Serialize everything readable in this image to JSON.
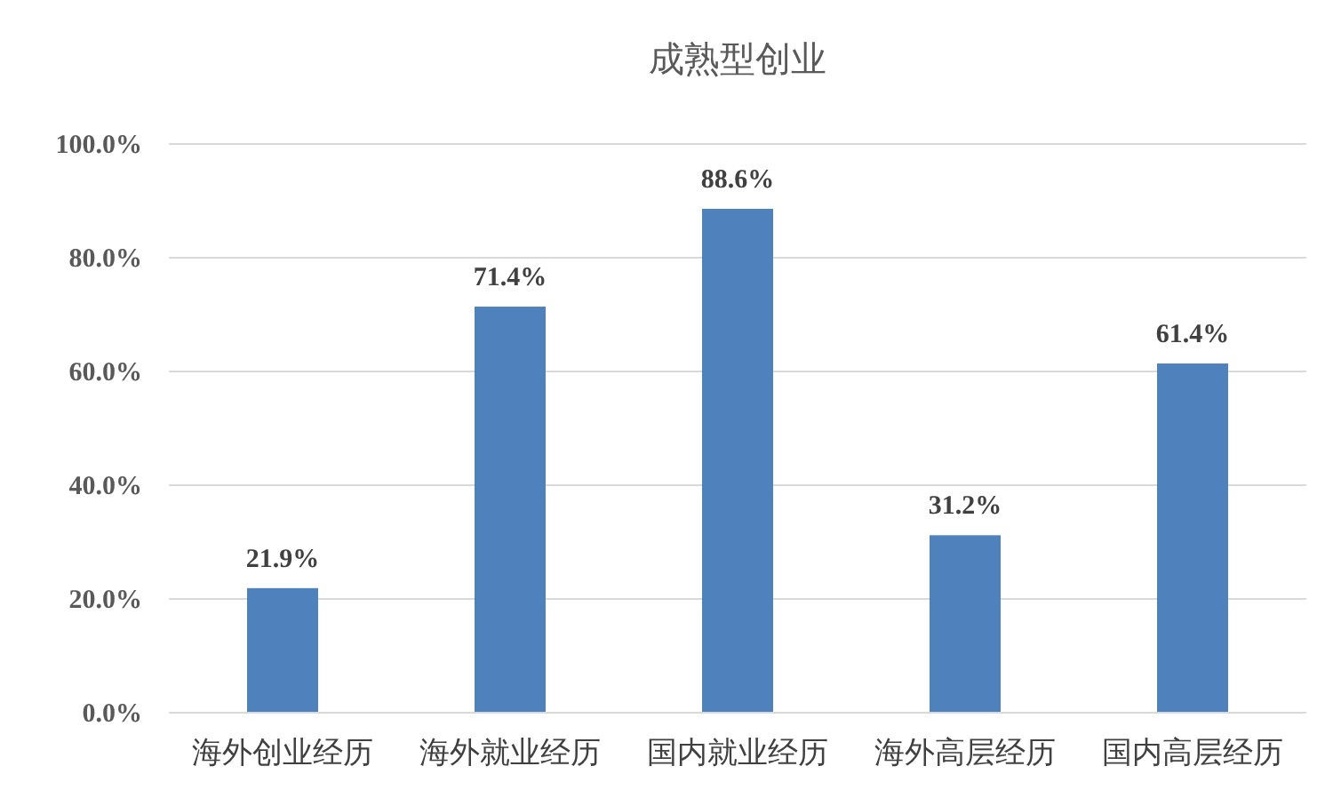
{
  "chart_data": {
    "type": "bar",
    "title": "成熟型创业",
    "categories": [
      "海外创业经历",
      "海外就业经历",
      "国内就业经历",
      "海外高层经历",
      "国内高层经历"
    ],
    "values": [
      21.9,
      71.4,
      88.6,
      31.2,
      61.4
    ],
    "value_labels": [
      "21.9%",
      "71.4%",
      "88.6%",
      "31.2%",
      "61.4%"
    ],
    "color": "#4f81bd",
    "ylim": [
      0,
      100
    ],
    "yticks": [
      {
        "value": 0,
        "label": "0.0%"
      },
      {
        "value": 20,
        "label": "20.0%"
      },
      {
        "value": 40,
        "label": "40.0%"
      },
      {
        "value": 60,
        "label": "60.0%"
      },
      {
        "value": 80,
        "label": "80.0%"
      },
      {
        "value": 100,
        "label": "100.0%"
      }
    ],
    "grid": "y"
  }
}
